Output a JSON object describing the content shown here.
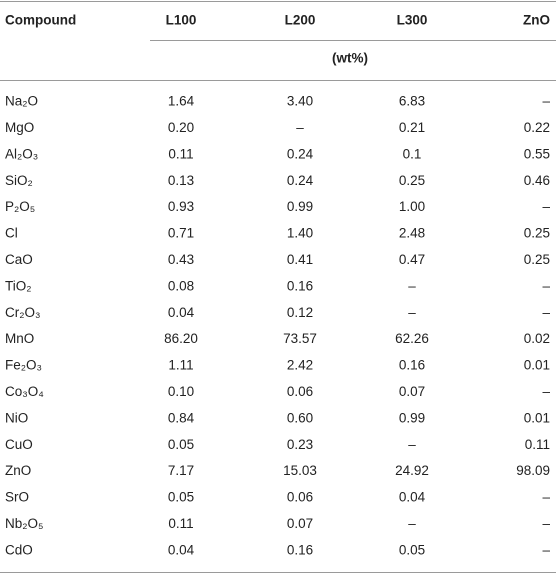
{
  "table": {
    "header": [
      "Compound",
      "L100",
      "L200",
      "L300",
      "ZnO"
    ],
    "unit": "(wt%)",
    "rows": [
      [
        "Na₂O",
        "1.64",
        "3.40",
        "6.83",
        "–"
      ],
      [
        "MgO",
        "0.20",
        "–",
        "0.21",
        "0.22"
      ],
      [
        "Al₂O₃",
        "0.11",
        "0.24",
        "0.1",
        "0.55"
      ],
      [
        "SiO₂",
        "0.13",
        "0.24",
        "0.25",
        "0.46"
      ],
      [
        "P₂O₅",
        "0.93",
        "0.99",
        "1.00",
        "–"
      ],
      [
        "Cl",
        "0.71",
        "1.40",
        "2.48",
        "0.25"
      ],
      [
        "CaO",
        "0.43",
        "0.41",
        "0.47",
        "0.25"
      ],
      [
        "TiO₂",
        "0.08",
        "0.16",
        "–",
        "–"
      ],
      [
        "Cr₂O₃",
        "0.04",
        "0.12",
        "–",
        "–"
      ],
      [
        "MnO",
        "86.20",
        "73.57",
        "62.26",
        "0.02"
      ],
      [
        "Fe₂O₃",
        "1.11",
        "2.42",
        "0.16",
        "0.01"
      ],
      [
        "Co₃O₄",
        "0.10",
        "0.06",
        "0.07",
        "–"
      ],
      [
        "NiO",
        "0.84",
        "0.60",
        "0.99",
        "0.01"
      ],
      [
        "CuO",
        "0.05",
        "0.23",
        "–",
        "0.11"
      ],
      [
        "ZnO",
        "7.17",
        "15.03",
        "24.92",
        "98.09"
      ],
      [
        "SrO",
        "0.05",
        "0.06",
        "0.04",
        "–"
      ],
      [
        "Nb₂O₅",
        "0.11",
        "0.07",
        "–",
        "–"
      ],
      [
        "CdO",
        "0.04",
        "0.16",
        "0.05",
        "–"
      ]
    ]
  }
}
